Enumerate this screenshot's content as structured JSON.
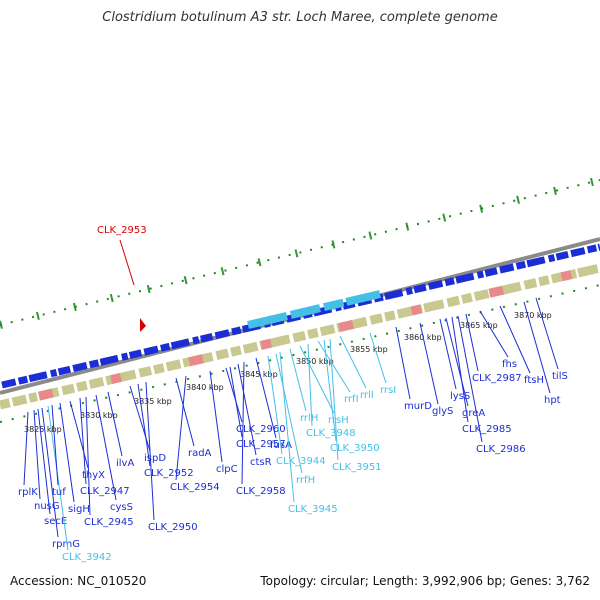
{
  "title": "Clostridium botulinum A3 str. Loch Maree, complete genome",
  "footer": {
    "accession": "Accession: NC_010520",
    "summary": "Topology: circular; Length: 3,992,906 bp; Genes: 3,762"
  },
  "colors": {
    "gene": "#1b2ed6",
    "rna": "#44c0e8",
    "highlight": "#d40000",
    "ring": "#8a8a8a",
    "dots": "#1f8a1f"
  },
  "pointer": {
    "label": "CLK_2953"
  },
  "kbp_ticks": [
    "3825 kbp",
    "3830 kbp",
    "3835 kbp",
    "3840 kbp",
    "3845 kbp",
    "3850 kbp",
    "3855 kbp",
    "3860 kbp",
    "3865 kbp",
    "3870 kbp"
  ],
  "gene_labels": [
    {
      "text": "rplK",
      "type": "gene"
    },
    {
      "text": "nusG",
      "type": "gene"
    },
    {
      "text": "secE",
      "type": "gene"
    },
    {
      "text": "rpmG",
      "type": "gene"
    },
    {
      "text": "CLK_3942",
      "type": "rna"
    },
    {
      "text": "tuf",
      "type": "gene"
    },
    {
      "text": "sigH",
      "type": "gene"
    },
    {
      "text": "thyX",
      "type": "gene"
    },
    {
      "text": "CLK_2947",
      "type": "gene"
    },
    {
      "text": "CLK_2945",
      "type": "gene"
    },
    {
      "text": "cysS",
      "type": "gene"
    },
    {
      "text": "ilvA",
      "type": "gene"
    },
    {
      "text": "ispD",
      "type": "gene"
    },
    {
      "text": "CLK_2952",
      "type": "gene"
    },
    {
      "text": "CLK_2950",
      "type": "gene"
    },
    {
      "text": "radA",
      "type": "gene"
    },
    {
      "text": "CLK_2954",
      "type": "gene"
    },
    {
      "text": "clpC",
      "type": "gene"
    },
    {
      "text": "CLK_2960",
      "type": "gene"
    },
    {
      "text": "CLK_2957",
      "type": "gene"
    },
    {
      "text": "ctsR",
      "type": "gene"
    },
    {
      "text": "CLK_2958",
      "type": "gene"
    },
    {
      "text": "fusA",
      "type": "gene"
    },
    {
      "text": "CLK_3944",
      "type": "rna"
    },
    {
      "text": "rrfH",
      "type": "rna"
    },
    {
      "text": "CLK_3945",
      "type": "rna"
    },
    {
      "text": "rrlH",
      "type": "rna"
    },
    {
      "text": "rrsH",
      "type": "rna"
    },
    {
      "text": "CLK_3948",
      "type": "rna"
    },
    {
      "text": "rrfI",
      "type": "rna"
    },
    {
      "text": "CLK_3950",
      "type": "rna"
    },
    {
      "text": "CLK_3951",
      "type": "rna"
    },
    {
      "text": "rrlI",
      "type": "rna"
    },
    {
      "text": "rrsI",
      "type": "rna"
    },
    {
      "text": "murD",
      "type": "gene"
    },
    {
      "text": "glyS",
      "type": "gene"
    },
    {
      "text": "lysS",
      "type": "gene"
    },
    {
      "text": "greA",
      "type": "gene"
    },
    {
      "text": "CLK_2985",
      "type": "gene"
    },
    {
      "text": "CLK_2986",
      "type": "gene"
    },
    {
      "text": "CLK_2987",
      "type": "gene"
    },
    {
      "text": "fhs",
      "type": "gene"
    },
    {
      "text": "ftsH",
      "type": "gene"
    },
    {
      "text": "hpt",
      "type": "gene"
    },
    {
      "text": "tilS",
      "type": "gene"
    }
  ]
}
